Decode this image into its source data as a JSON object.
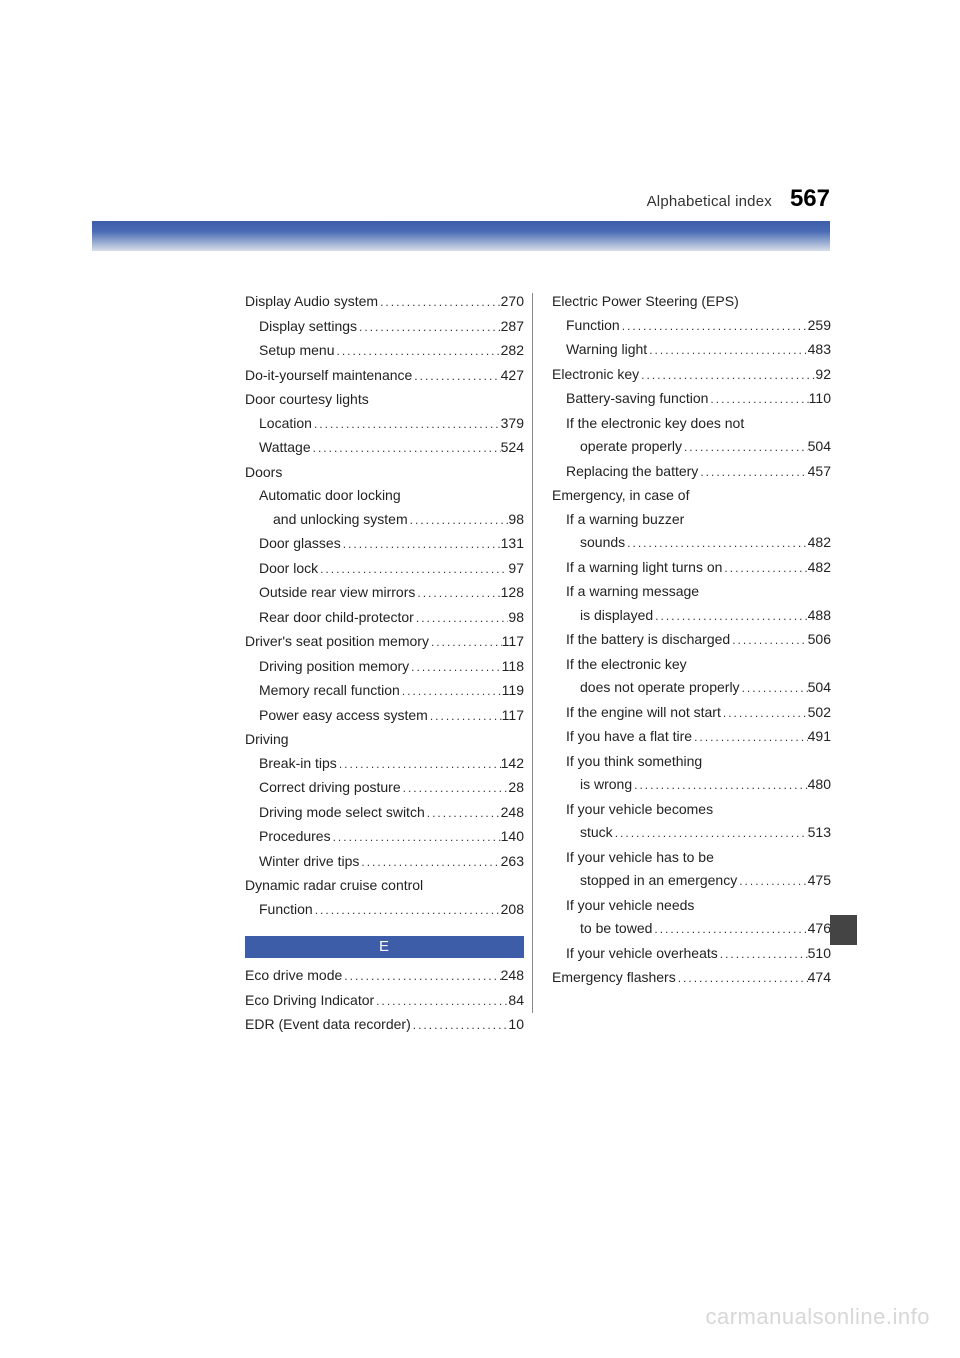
{
  "header": {
    "title": "Alphabetical index",
    "page": "567"
  },
  "col_left": [
    {
      "t": "h",
      "label": "Display Audio system",
      "pg": "270"
    },
    {
      "t": "s",
      "label": "Display settings",
      "pg": "287"
    },
    {
      "t": "s",
      "label": "Setup menu",
      "pg": "282"
    },
    {
      "t": "h",
      "label": "Do-it-yourself maintenance",
      "pg": "427"
    },
    {
      "t": "hn",
      "label": "Door courtesy lights"
    },
    {
      "t": "s",
      "label": "Location",
      "pg": "379"
    },
    {
      "t": "s",
      "label": "Wattage",
      "pg": "524"
    },
    {
      "t": "hn",
      "label": "Doors"
    },
    {
      "t": "sn",
      "label": "Automatic door locking"
    },
    {
      "t": "s2",
      "label": "and unlocking system",
      "pg": "98"
    },
    {
      "t": "s",
      "label": "Door glasses",
      "pg": "131"
    },
    {
      "t": "s",
      "label": "Door lock",
      "pg": "97"
    },
    {
      "t": "s",
      "label": "Outside rear view mirrors",
      "pg": "128"
    },
    {
      "t": "s",
      "label": "Rear door child-protector",
      "pg": "98"
    },
    {
      "t": "h",
      "label": "Driver's seat position memory",
      "pg": "117"
    },
    {
      "t": "s",
      "label": "Driving position memory",
      "pg": "118"
    },
    {
      "t": "s",
      "label": "Memory recall function",
      "pg": "119"
    },
    {
      "t": "s",
      "label": "Power easy access system",
      "pg": "117"
    },
    {
      "t": "hn",
      "label": "Driving"
    },
    {
      "t": "s",
      "label": "Break-in tips",
      "pg": "142"
    },
    {
      "t": "s",
      "label": "Correct driving posture",
      "pg": "28"
    },
    {
      "t": "s",
      "label": "Driving mode select switch",
      "pg": "248"
    },
    {
      "t": "s",
      "label": "Procedures",
      "pg": "140"
    },
    {
      "t": "s",
      "label": "Winter drive tips",
      "pg": "263"
    },
    {
      "t": "hn",
      "label": "Dynamic radar cruise control"
    },
    {
      "t": "s",
      "label": "Function",
      "pg": "208"
    }
  ],
  "section_letter": "E",
  "col_left_e": [
    {
      "t": "h",
      "label": "Eco drive mode",
      "pg": "248"
    },
    {
      "t": "h",
      "label": "Eco Driving Indicator",
      "pg": "84"
    },
    {
      "t": "h",
      "label": "EDR (Event data recorder)",
      "pg": "10"
    }
  ],
  "col_right": [
    {
      "t": "hn",
      "label": "Electric Power Steering (EPS)"
    },
    {
      "t": "s",
      "label": "Function",
      "pg": "259"
    },
    {
      "t": "s",
      "label": "Warning light",
      "pg": "483"
    },
    {
      "t": "h",
      "label": "Electronic key",
      "pg": "92"
    },
    {
      "t": "s",
      "label": "Battery-saving function",
      "pg": "110"
    },
    {
      "t": "sn",
      "label": "If the electronic key does not"
    },
    {
      "t": "s2",
      "label": "operate properly",
      "pg": "504"
    },
    {
      "t": "s",
      "label": "Replacing the battery",
      "pg": "457"
    },
    {
      "t": "hn",
      "label": "Emergency, in case of"
    },
    {
      "t": "sn",
      "label": "If a warning buzzer"
    },
    {
      "t": "s2",
      "label": "sounds",
      "pg": "482"
    },
    {
      "t": "s",
      "label": "If a warning light turns on",
      "pg": "482"
    },
    {
      "t": "sn",
      "label": "If a warning message"
    },
    {
      "t": "s2",
      "label": "is displayed",
      "pg": "488"
    },
    {
      "t": "s",
      "label": "If the battery is discharged",
      "pg": "506"
    },
    {
      "t": "sn",
      "label": "If the electronic key"
    },
    {
      "t": "s2",
      "label": "does not operate properly",
      "pg": "504"
    },
    {
      "t": "s",
      "label": "If the engine will not start",
      "pg": "502"
    },
    {
      "t": "s",
      "label": "If you have a flat tire",
      "pg": "491"
    },
    {
      "t": "sn",
      "label": "If you think something"
    },
    {
      "t": "s2",
      "label": "is wrong",
      "pg": "480"
    },
    {
      "t": "sn",
      "label": "If your vehicle becomes"
    },
    {
      "t": "s2",
      "label": "stuck",
      "pg": "513"
    },
    {
      "t": "sn",
      "label": "If your vehicle has to be"
    },
    {
      "t": "s2",
      "label": "stopped in an emergency",
      "pg": "475"
    },
    {
      "t": "sn",
      "label": "If your vehicle needs"
    },
    {
      "t": "s2",
      "label": "to be towed",
      "pg": "476"
    },
    {
      "t": "s",
      "label": "If your vehicle overheats",
      "pg": "510"
    },
    {
      "t": "h",
      "label": "Emergency flashers",
      "pg": "474"
    }
  ],
  "watermark": "carmanualsonline.info"
}
